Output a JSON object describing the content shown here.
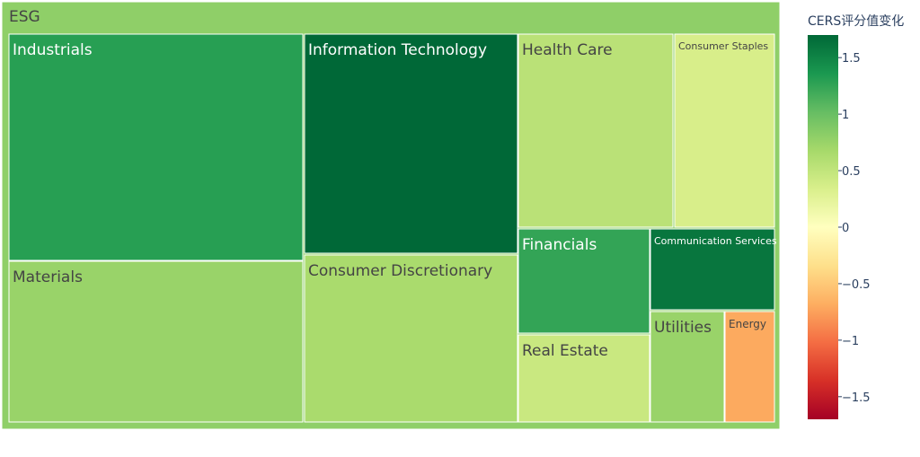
{
  "chart_data": {
    "type": "treemap",
    "title": "",
    "root": {
      "label": "ESG",
      "value": 0.8
    },
    "colorscale": "RdYlGn",
    "colorscale_colors": [
      "#a50026",
      "#d73027",
      "#f46d43",
      "#fdae61",
      "#fee08b",
      "#ffffbf",
      "#d9ef8b",
      "#a6d96a",
      "#66bd63",
      "#1a9850",
      "#006837"
    ],
    "color_range": [
      -1.7,
      1.7
    ],
    "colorbar": {
      "title": "CERS评分值变化",
      "ticks": [
        1.5,
        1,
        0.5,
        0,
        -0.5,
        -1,
        -1.5
      ],
      "tick_labels": [
        "1.5",
        "1",
        "0.5",
        "0",
        "−0.5",
        "−1",
        "−1.5"
      ]
    },
    "sectors": [
      {
        "label": "Industrials",
        "size": 20,
        "color_value": 1.3
      },
      {
        "label": "Materials",
        "size": 12,
        "color_value": 0.75
      },
      {
        "label": "Information Technology",
        "size": 14,
        "color_value": 1.7
      },
      {
        "label": "Consumer Discretionary",
        "size": 9.5,
        "color_value": 0.65
      },
      {
        "label": "Health Care",
        "size": 5.8,
        "color_value": 0.55
      },
      {
        "label": "Consumer Staples",
        "size": 3.7,
        "color_value": 0.35
      },
      {
        "label": "Financials",
        "size": 2.7,
        "color_value": 1.25
      },
      {
        "label": "Communication Services",
        "size": 2.3,
        "color_value": 1.6
      },
      {
        "label": "Real Estate",
        "size": 2.2,
        "color_value": 0.45
      },
      {
        "label": "Utilities",
        "size": 1.3,
        "color_value": 0.75
      },
      {
        "label": "Energy",
        "size": 0.85,
        "color_value": -0.7
      }
    ]
  }
}
